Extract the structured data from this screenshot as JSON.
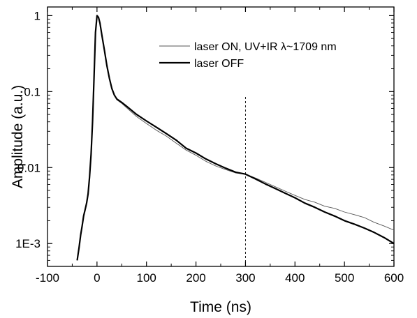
{
  "chart_data": {
    "type": "line",
    "title": "",
    "xlabel": "Time (ns)",
    "ylabel": "Amplitude (a.u.)",
    "xlim": [
      -100,
      600
    ],
    "ylim": [
      0.0005,
      1.3
    ],
    "yscale": "log",
    "grid": false,
    "legend_position": "top-right",
    "x_ticks": [
      {
        "value": -100,
        "label": "-100"
      },
      {
        "value": 0,
        "label": "0"
      },
      {
        "value": 100,
        "label": "100"
      },
      {
        "value": 200,
        "label": "200"
      },
      {
        "value": 300,
        "label": "300"
      },
      {
        "value": 400,
        "label": "400"
      },
      {
        "value": 500,
        "label": "500"
      },
      {
        "value": 600,
        "label": "600"
      }
    ],
    "y_ticks": [
      {
        "value": 0.001,
        "label": "1E-3"
      },
      {
        "value": 0.01,
        "label": "0.01"
      },
      {
        "value": 0.1,
        "label": "0.1"
      },
      {
        "value": 1,
        "label": "1"
      }
    ],
    "vline": {
      "x": 300,
      "style": "dashed"
    },
    "series": [
      {
        "name": "laser ON, UV+IR λ~1709 nm",
        "color": "#555555",
        "line_style": "thin",
        "x": [
          -40,
          -36,
          -33,
          -30,
          -27,
          -24,
          -21,
          -18,
          -15,
          -12,
          -9,
          -6,
          -3,
          0,
          3,
          6,
          10,
          15,
          20,
          25,
          30,
          35,
          40,
          50,
          60,
          80,
          100,
          120,
          140,
          160,
          180,
          200,
          220,
          240,
          260,
          280,
          300,
          320,
          340,
          360,
          380,
          400,
          420,
          440,
          460,
          480,
          500,
          520,
          540,
          560,
          580,
          600
        ],
        "y": [
          0.0006,
          0.0009,
          0.0013,
          0.0017,
          0.0023,
          0.0028,
          0.0034,
          0.0045,
          0.0075,
          0.015,
          0.04,
          0.15,
          0.6,
          1.0,
          0.95,
          0.8,
          0.55,
          0.35,
          0.22,
          0.15,
          0.11,
          0.09,
          0.078,
          0.07,
          0.061,
          0.047,
          0.038,
          0.031,
          0.026,
          0.021,
          0.017,
          0.0145,
          0.0121,
          0.0105,
          0.0094,
          0.0085,
          0.0082,
          0.0073,
          0.0064,
          0.0056,
          0.0049,
          0.0043,
          0.0038,
          0.0035,
          0.0031,
          0.0029,
          0.0026,
          0.0024,
          0.0022,
          0.0019,
          0.0017,
          0.0015
        ]
      },
      {
        "name": "laser OFF",
        "color": "#000000",
        "line_style": "thick",
        "x": [
          -40,
          -36,
          -33,
          -30,
          -27,
          -24,
          -21,
          -18,
          -15,
          -12,
          -9,
          -6,
          -3,
          0,
          3,
          6,
          10,
          15,
          20,
          25,
          30,
          35,
          40,
          50,
          60,
          80,
          100,
          120,
          140,
          160,
          180,
          200,
          220,
          240,
          260,
          280,
          300,
          320,
          340,
          360,
          380,
          400,
          420,
          440,
          460,
          480,
          500,
          520,
          540,
          560,
          580,
          600
        ],
        "y": [
          0.0006,
          0.0009,
          0.0013,
          0.0017,
          0.0023,
          0.0028,
          0.0034,
          0.0045,
          0.0075,
          0.015,
          0.04,
          0.15,
          0.6,
          1.0,
          0.95,
          0.8,
          0.55,
          0.35,
          0.22,
          0.15,
          0.11,
          0.09,
          0.08,
          0.072,
          0.064,
          0.05,
          0.041,
          0.034,
          0.028,
          0.023,
          0.018,
          0.0155,
          0.013,
          0.0112,
          0.0098,
          0.0087,
          0.0082,
          0.0071,
          0.0061,
          0.0053,
          0.0046,
          0.004,
          0.0034,
          0.003,
          0.0026,
          0.0023,
          0.002,
          0.0018,
          0.0016,
          0.0014,
          0.0012,
          0.001
        ]
      }
    ]
  }
}
